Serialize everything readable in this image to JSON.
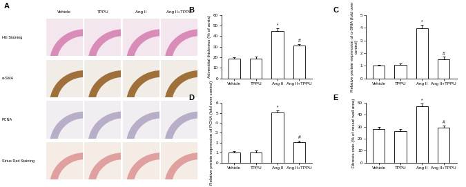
{
  "image_panel": {
    "title": "A",
    "columns": [
      "Vehicle",
      "TPPU",
      "Ang II",
      "Ang II+TPPU"
    ],
    "rows": [
      "HE Staining",
      "α-SMA",
      "PCNA",
      "Sirius Red Staining"
    ]
  },
  "chart_data": [
    {
      "type": "bar",
      "title": "B",
      "categories": [
        "Vehicle",
        "TPPU",
        "Ang II",
        "Ang II+TPPU"
      ],
      "values": [
        18.5,
        18.5,
        45,
        31
      ],
      "errors": [
        1.5,
        2,
        2.5,
        1.5
      ],
      "annotations": [
        null,
        null,
        "*",
        "#"
      ],
      "y_label": "Adventitial thickness (% of aorta)",
      "ylim": [
        0,
        60
      ],
      "yticks": [
        0,
        10,
        20,
        30,
        40,
        50,
        60
      ],
      "color": "#ffffff"
    },
    {
      "type": "bar",
      "title": "C",
      "categories": [
        "Vehicle",
        "TPPU",
        "Ang II",
        "Ang II+TPPU"
      ],
      "values": [
        1.0,
        1.05,
        3.95,
        1.5
      ],
      "errors": [
        0.1,
        0.15,
        0.25,
        0.2
      ],
      "annotations": [
        null,
        null,
        "*",
        "#"
      ],
      "y_label": "Relative protein expression of α-SMA (fold over control)",
      "ylim": [
        0,
        5
      ],
      "yticks": [
        0,
        1,
        2,
        3,
        4,
        5
      ],
      "color": "#ffffff"
    },
    {
      "type": "bar",
      "title": "D",
      "categories": [
        "Vehicle",
        "TPPU",
        "Ang II",
        "Ang II+TPPU"
      ],
      "values": [
        1.0,
        1.05,
        5.05,
        2.05
      ],
      "errors": [
        0.15,
        0.15,
        0.2,
        0.15
      ],
      "annotations": [
        null,
        null,
        "*",
        "#"
      ],
      "y_label": "Relative protein expression of PCNA (fold over control)",
      "ylim": [
        0,
        6
      ],
      "yticks": [
        0,
        1,
        2,
        3,
        4,
        5,
        6
      ],
      "color": "#ffffff"
    },
    {
      "type": "bar",
      "title": "E",
      "categories": [
        "Vehicle",
        "TPPU",
        "Ang II",
        "Ang II+TPPU"
      ],
      "values": [
        28,
        26.5,
        47,
        29.5
      ],
      "errors": [
        2,
        1.5,
        2.5,
        1.5
      ],
      "annotations": [
        null,
        null,
        "*",
        "#"
      ],
      "y_label": "Fibrosis ratio (% of vessel wall area)",
      "ylim": [
        0,
        50
      ],
      "yticks": [
        0,
        10,
        20,
        30,
        40,
        50
      ],
      "color": "#ffffff"
    }
  ]
}
